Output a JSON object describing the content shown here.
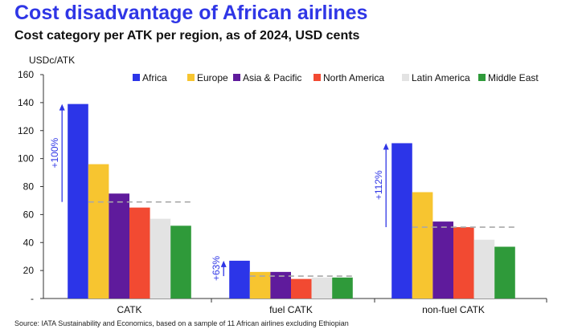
{
  "header": {
    "title": "Cost disadvantage of African airlines",
    "subtitle": "Cost category per ATK per region, as of 2024, USD cents"
  },
  "footer": {
    "source": "Source: IATA Sustainability and Economics, based on a sample of 11 African airlines excluding Ethiopian"
  },
  "chart_data": {
    "type": "bar",
    "ylabel": "USDc/ATK",
    "ylim": [
      0,
      160
    ],
    "yticks": [
      0,
      20,
      40,
      60,
      80,
      100,
      120,
      140,
      160
    ],
    "ytick_labels": [
      "-",
      "20",
      "40",
      "60",
      "80",
      "100",
      "120",
      "140",
      "160"
    ],
    "categories": [
      "CATK",
      "fuel CATK",
      "non-fuel CATK"
    ],
    "series": [
      {
        "name": "Africa",
        "color": "#2c35e8",
        "values": [
          139,
          27,
          111
        ]
      },
      {
        "name": "Europe",
        "color": "#f7c530",
        "values": [
          96,
          19,
          76
        ]
      },
      {
        "name": "Asia & Pacific",
        "color": "#5f1b9c",
        "values": [
          75,
          19,
          55
        ]
      },
      {
        "name": "North America",
        "color": "#f24a32",
        "values": [
          65,
          14,
          51
        ]
      },
      {
        "name": "Latin America",
        "color": "#e3e3e3",
        "values": [
          57,
          15,
          42
        ]
      },
      {
        "name": "Middle East",
        "color": "#2f9a3a",
        "values": [
          52,
          15,
          37
        ]
      }
    ],
    "reference_lines": [
      69,
      16,
      51
    ],
    "annotations": [
      "+100%",
      "+63%",
      "+112%"
    ],
    "legend_position": "top-right",
    "grid": false
  }
}
